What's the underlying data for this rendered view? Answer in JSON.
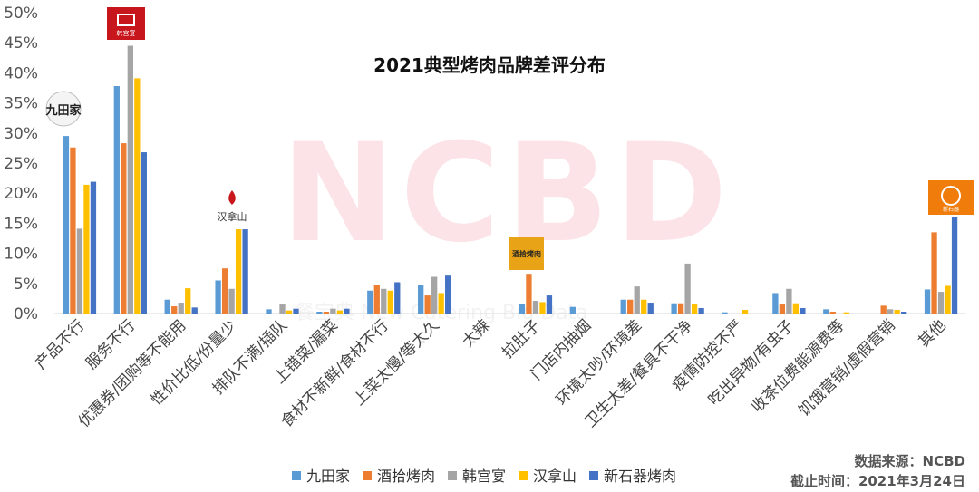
{
  "chart_data": {
    "type": "bar",
    "title": "2021典型烤肉品牌差评分布",
    "ylim": [
      0,
      50
    ],
    "yticks": [
      "0%",
      "5%",
      "10%",
      "15%",
      "20%",
      "25%",
      "30%",
      "35%",
      "40%",
      "45%",
      "50%"
    ],
    "categories": [
      "产品不行",
      "服务不行",
      "优惠券/团购等不能用",
      "性价比低/份量少",
      "排队不满/插队",
      "上错菜/漏菜",
      "食材不新鲜/食材不行",
      "上菜太慢/等太久",
      "太辣",
      "拉肚子",
      "门店内抽烟",
      "环境太吵/环境差",
      "卫生太差/餐具不干净",
      "疫情防控不严",
      "吃出异物/有虫子",
      "收茶位费能源费等",
      "饥饿营销/虚假营销",
      "其他"
    ],
    "series": [
      {
        "name": "九田家",
        "color": "#5b9bd5",
        "values": [
          29.5,
          37.8,
          2.3,
          5.5,
          0.7,
          0.3,
          3.8,
          4.8,
          0,
          1.6,
          1.1,
          2.3,
          1.7,
          0.2,
          3.4,
          0.7,
          0,
          4.0
        ]
      },
      {
        "name": "酒拾烤肉",
        "color": "#ed7d31",
        "values": [
          27.6,
          28.3,
          1.2,
          7.5,
          0,
          0.3,
          4.7,
          3.0,
          0,
          6.6,
          0,
          2.3,
          1.7,
          0,
          1.5,
          0.3,
          1.3,
          13.5
        ]
      },
      {
        "name": "韩宫宴",
        "color": "#a5a5a5",
        "values": [
          14.1,
          44.5,
          1.8,
          4.1,
          1.5,
          0.8,
          4.1,
          6.1,
          0,
          2.1,
          0,
          4.5,
          8.3,
          0,
          4.1,
          0,
          0.7,
          3.6
        ]
      },
      {
        "name": "汉拿山",
        "color": "#ffc000",
        "values": [
          21.4,
          39.1,
          4.2,
          14.0,
          0.5,
          0.5,
          3.8,
          3.4,
          0,
          1.9,
          0,
          2.3,
          1.5,
          0.6,
          1.7,
          0.2,
          0.6,
          4.6
        ]
      },
      {
        "name": "新石器烤肉",
        "color": "#4472c4",
        "values": [
          21.9,
          26.8,
          1.0,
          14.0,
          0.8,
          0.8,
          5.2,
          6.3,
          0,
          3.0,
          0,
          1.8,
          0.9,
          0,
          0.9,
          0,
          0.3,
          16.0
        ]
      }
    ],
    "legend_position": "bottom",
    "grid": false
  },
  "watermark": {
    "big": "NCBD",
    "small": "餐宝典 New Catering Big Data"
  },
  "source_lines": [
    "数据来源：NCBD",
    "截止时间：2021年3月24日"
  ],
  "logos": {
    "jiutianjia": "九田家",
    "hangongyan": "韩宫宴",
    "hannashan": "汉拿山",
    "jiushi": "酒拾烤肉",
    "xinshiqi": "新石器"
  }
}
